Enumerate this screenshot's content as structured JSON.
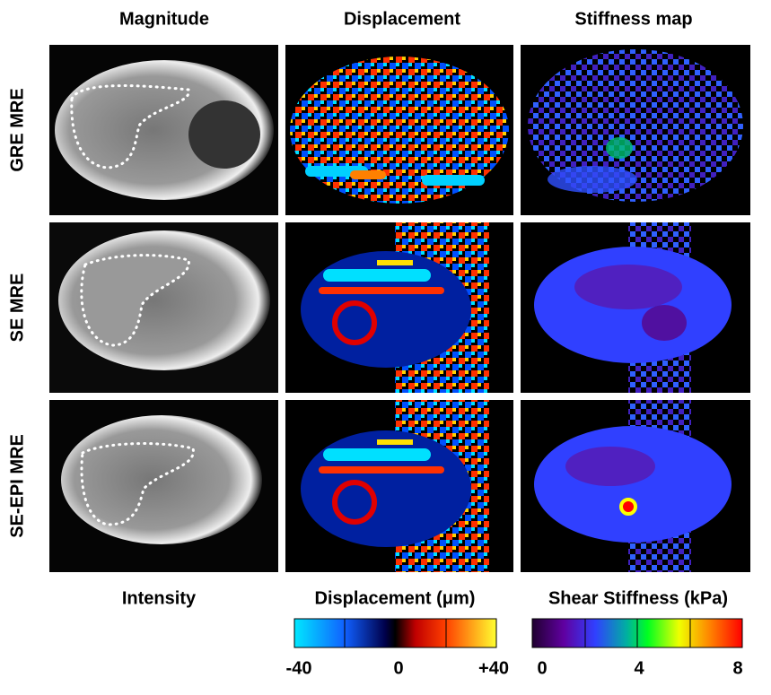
{
  "column_headers": [
    "Magnitude",
    "Displacement",
    "Stiffness map"
  ],
  "row_labels": [
    "GRE MRE",
    "SE MRE",
    "SE-EPI MRE"
  ],
  "colorbars": [
    {
      "title": "Intensity"
    },
    {
      "title": "Displacement (μm)",
      "tick_labels": [
        "-40",
        "0",
        "+40"
      ]
    },
    {
      "title": "Shear Stiffness (kPa)",
      "tick_labels": [
        "0",
        "4",
        "8"
      ]
    }
  ]
}
